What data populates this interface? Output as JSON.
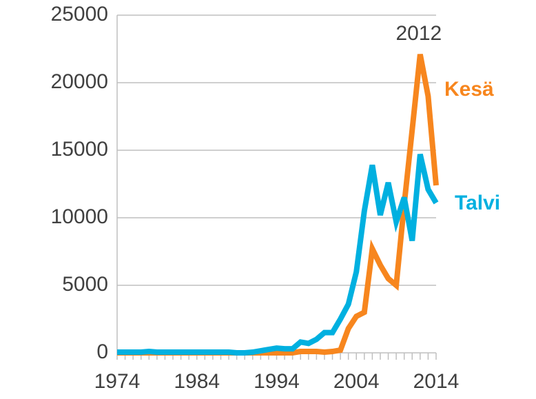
{
  "chart_data": {
    "type": "line",
    "x": [
      1974,
      1975,
      1976,
      1977,
      1978,
      1979,
      1980,
      1981,
      1982,
      1983,
      1984,
      1985,
      1986,
      1987,
      1988,
      1989,
      1990,
      1991,
      1992,
      1993,
      1994,
      1995,
      1996,
      1997,
      1998,
      1999,
      2000,
      2001,
      2002,
      2003,
      2004,
      2005,
      2006,
      2007,
      2008,
      2009,
      2010,
      2011,
      2012,
      2013,
      2014
    ],
    "series": [
      {
        "name": "Kesä",
        "color": "#f7861e",
        "values": [
          0,
          0,
          0,
          0,
          0,
          0,
          0,
          0,
          0,
          0,
          0,
          0,
          0,
          0,
          0,
          0,
          0,
          0,
          0,
          0,
          0,
          0,
          0,
          100,
          100,
          100,
          50,
          100,
          200,
          1800,
          2700,
          3000,
          7700,
          6500,
          5500,
          5000,
          11000,
          16500,
          22100,
          19000,
          12400
        ]
      },
      {
        "name": "Talvi",
        "color": "#00b0e0",
        "values": [
          50,
          50,
          50,
          50,
          100,
          50,
          50,
          50,
          50,
          50,
          50,
          50,
          50,
          50,
          50,
          0,
          0,
          50,
          150,
          250,
          350,
          300,
          300,
          800,
          700,
          1000,
          1500,
          1500,
          2500,
          3600,
          6000,
          10500,
          13900,
          10200,
          12600,
          9700,
          11500,
          8300,
          14700,
          12100,
          11100
        ]
      }
    ],
    "annotations": [
      {
        "text": "2012",
        "x": 2012,
        "y": 22100
      }
    ],
    "xlim": [
      1974,
      2014
    ],
    "xticks": [
      1974,
      1984,
      1994,
      2004,
      2014
    ],
    "ylim": [
      0,
      25000
    ],
    "yticks": [
      0,
      5000,
      10000,
      15000,
      20000,
      25000
    ],
    "grid": true
  }
}
